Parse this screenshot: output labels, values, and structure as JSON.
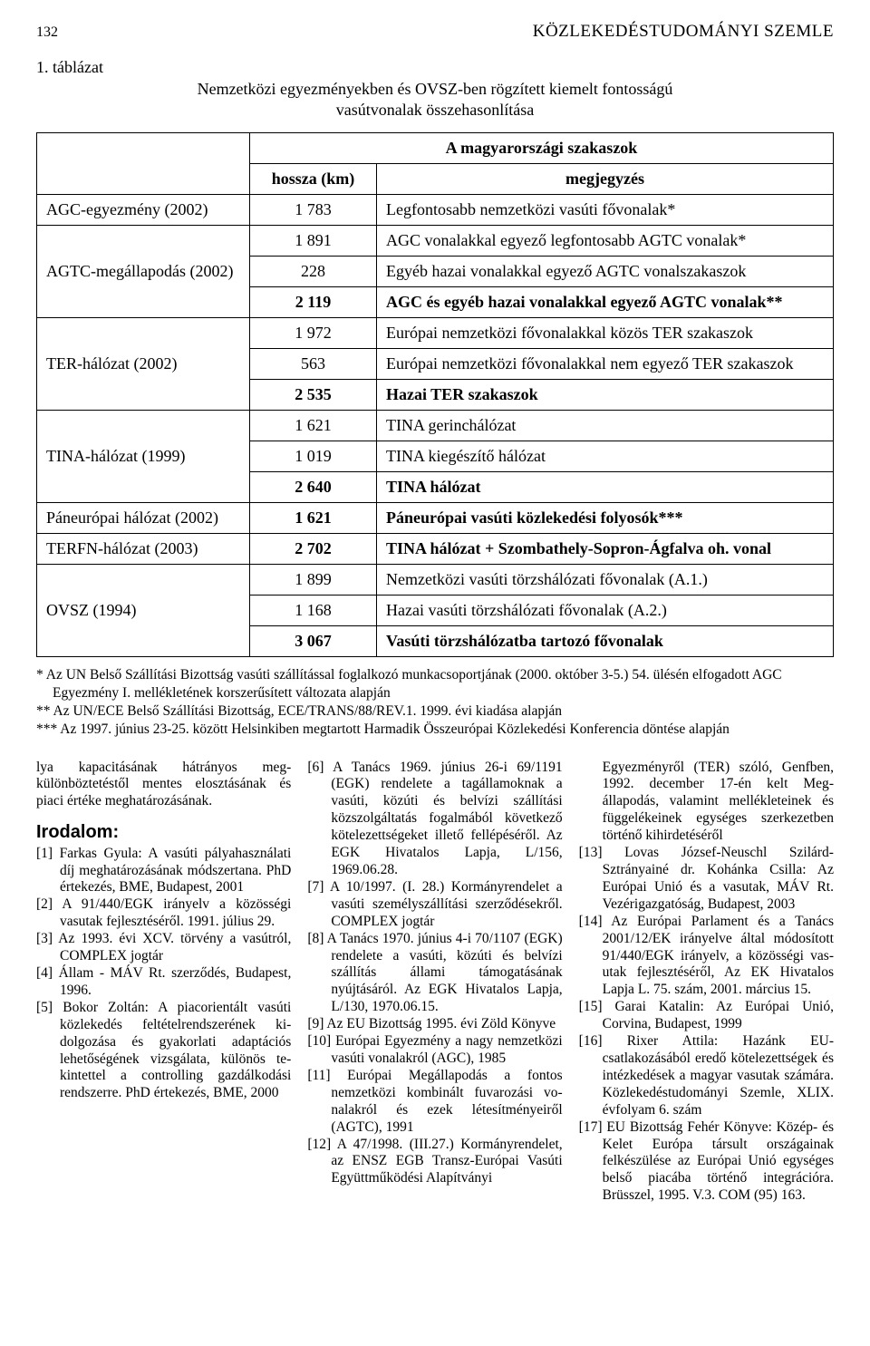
{
  "header": {
    "page_number": "132",
    "journal": "KÖZLEKEDÉSTUDOMÁNYI SZEMLE"
  },
  "table": {
    "caption": "1. táblázat",
    "subtitle": "Nemzetközi egyezményekben és OVSZ-ben rögzített kiemelt fontosságú vasútvonalak összehasonlítása",
    "header_span": "A magyarországi szakaszok",
    "col_len": "hossza (km)",
    "col_note": "megjegyzés",
    "rows": [
      {
        "name": "AGC-egyezmény (2002)",
        "len": "1 783",
        "note": "Legfontosabb nemzetközi vasúti fővonalak*",
        "bold": false
      },
      {
        "name": "AGTC-megállapodás (2002)",
        "len": "1 891",
        "note": "AGC vonalakkal egyező legfontosabb AGTC vonalak*",
        "bold": false,
        "rowspan": 3
      },
      {
        "len": "228",
        "note": "Egyéb hazai vonalakkal egyező AGTC vonalszakaszok",
        "bold": false
      },
      {
        "len": "2 119",
        "note": "AGC és egyéb hazai vonalakkal egyező AGTC vonalak**",
        "bold": true
      },
      {
        "name": "TER-hálózat (2002)",
        "len": "1 972",
        "note": "Európai nemzetközi fővonalakkal közös TER szakaszok",
        "bold": false,
        "rowspan": 3
      },
      {
        "len": "563",
        "note": "Európai nemzetközi fővonalakkal nem egyező TER szakaszok",
        "bold": false
      },
      {
        "len": "2 535",
        "note": "Hazai TER szakaszok",
        "bold": true
      },
      {
        "name": "TINA-hálózat (1999)",
        "len": "1 621",
        "note": "TINA gerinchálózat",
        "bold": false,
        "rowspan": 3
      },
      {
        "len": "1 019",
        "note": "TINA kiegészítő hálózat",
        "bold": false
      },
      {
        "len": "2 640",
        "note": "TINA hálózat",
        "bold": true
      },
      {
        "name": "Páneurópai hálózat (2002)",
        "len": "1 621",
        "note": "Páneurópai vasúti közlekedési folyosók***",
        "bold": true
      },
      {
        "name": "TERFN-hálózat (2003)",
        "len": "2 702",
        "note": "TINA hálózat + Szombathely-Sopron-Ágfalva oh. vonal",
        "bold": true
      },
      {
        "name": "OVSZ (1994)",
        "len": "1 899",
        "note": "Nemzetközi vasúti törzshálózati fővonalak (A.1.)",
        "bold": false,
        "rowspan": 3
      },
      {
        "len": "1 168",
        "note": "Hazai vasúti törzshálózati fővonalak (A.2.)",
        "bold": false
      },
      {
        "len": "3 067",
        "note": "Vasúti törzshálózatba tartozó fővonalak",
        "bold": true
      }
    ]
  },
  "footnotes": {
    "f1": "* Az UN Belső Szállítási Bizottság vasúti szállítással foglalkozó munkacsoportjának (2000. október 3-5.) 54. ülésén elfogadott AGC Egyezmény I. mellékletének korszerűsített változata alapján",
    "f2": "** Az UN/ECE Belső Szállítási Bizottság, ECE/TRANS/88/REV.1. 1999. évi kiadása alapján",
    "f3": "*** Az 1997. június 23-25. között Helsinkiben megtartott Harmadik Összeurópai Közlekedési Konferencia döntése alapján"
  },
  "col1": {
    "lead": "lya kapacitásának hátrányos meg­különböztetéstől mentes elosztá­sának és piaci értéke meghatáro­zásának.",
    "irodalom": "Irodalom:",
    "r1": "[1] Farkas Gyula: A vasúti pályahaszná­lati díj meghatározásának módszerta­na. PhD értekezés, BME, Budapest, 2001",
    "r2": "[2] A 91/440/EGK irányelv a közösségi vasutak fejlesztéséről. 1991. július 29.",
    "r3": "[3] Az 1993. évi XCV. törvény a vasút­ról, COMPLEX jogtár",
    "r4": "[4] Állam - MÁV Rt. szerződés, Buda­pest, 1996.",
    "r5": "[5] Bokor Zoltán: A piacorientált vasúti közlekedés feltételrendszerének ki­dolgozása és gyakorlati adaptációs lehetőségének vizsgálata, különös te­kintettel a controlling gazdálkodási rendszerre. PhD értekezés, BME, 2000"
  },
  "col2": {
    "r6": "[6] A Tanács 1969. június 26-i 69/1191 (EGK) rendelete a tagállamoknak a vasúti, közúti és belvízi szállítási közszolgáltatás fogalmából követke­ző kötelezettségeket illető fellépésé­ről. Az EGK Hivatalos Lapja, L/156, 1969.06.28.",
    "r7": "[7] A 10/1997. (I. 28.) Kormányrendelet a vasúti személyszállítási szerződé­sekről. COMPLEX jogtár",
    "r8": "[8] A Tanács 1970. június 4-i 70/1107 (EGK) rendelete a vasúti, közúti és belvízi szállítás állami támogatásá­nak nyújtásáról. Az EGK Hivatalos Lapja, L/130, 1970.06.15.",
    "r9": "[9] Az EU Bizottság 1995. évi Zöld Könyve",
    "r10": "[10] Európai Egyezmény a nagy nemzet­közi vasúti vonalakról (AGC), 1985",
    "r11": "[11] Európai Megállapodás a fontos nemzetközi kombinált fuvarozási vo­nalakról és ezek létesítményeiről (AGTC), 1991",
    "r12": "[12] A 47/1998. (III.27.) Kormányrende­let, az ENSZ EGB Transz-Európai Vasúti Együttműködési Alapítványi"
  },
  "col3": {
    "r12b": "Egyezményről (TER) szóló, Genf­ben, 1992. december 17-én kelt Meg­állapodás, valamint mellékleteinek és függelékeinek egységes szerkezet­ben történő kihirdetéséről",
    "r13": "[13] Lovas József-Neuschl Szilárd-Sztrányainé dr. Kohánka Csilla: Az Európai Unió és a vasutak, MÁV Rt. Vezérigazgatóság, Budapest, 2003",
    "r14": "[14] Az Európai Parlament és a Tanács 2001/12/EK irányelve által módosított 91/440/EGK irányelv, a közösségi vas­utak fejlesztéséről, Az EK Hivatalos Lapja L. 75. szám, 2001. március 15.",
    "r15": "[15] Garai Katalin: Az Európai Unió, Corvina, Budapest, 1999",
    "r16": "[16] Rixer Attila: Hazánk EU-csatlakozásából eredő kötelezettsé­gek és intézkedések a magyar vas­utak számára. Közlekedéstudományi Szemle, XLIX. évfolyam 6. szám",
    "r17": "[17] EU Bizottság Fehér Könyve: Közép- és Kelet Európa társult országainak felkészülése az Európai Unió egysé­ges belső piacába történő integrációra. Brüsszel, 1995. V.3. COM (95) 163."
  }
}
